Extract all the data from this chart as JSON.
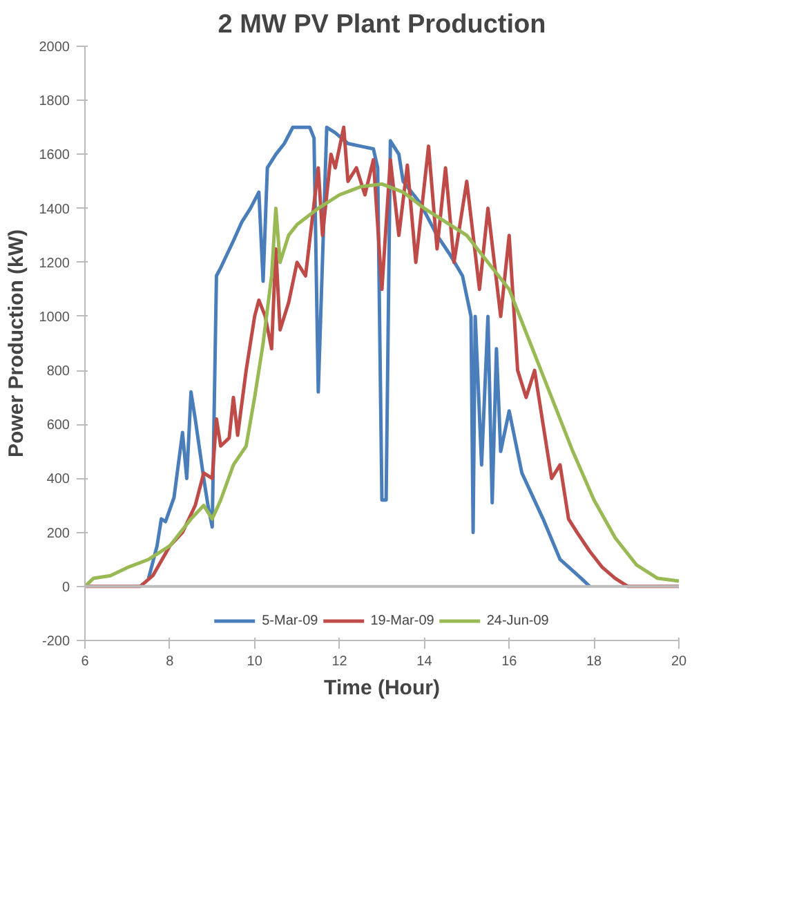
{
  "chart_data": {
    "type": "line",
    "title": "2 MW PV Plant Production",
    "xlabel": "Time (Hour)",
    "ylabel": "Power Production (kW)",
    "xlim": [
      6,
      20
    ],
    "xticks": [
      6,
      8,
      10,
      12,
      14,
      16,
      18,
      20
    ],
    "ylim": [
      -200,
      2000
    ],
    "yticks": [
      -200,
      0,
      200,
      400,
      600,
      800,
      1000,
      1200,
      1400,
      1600,
      1800,
      2000
    ],
    "ref_lines": [
      {
        "axis": "y",
        "value": 0,
        "color": "#bbbbbb"
      }
    ],
    "grid": false,
    "legend": "bottom",
    "marker": "none",
    "line_style": "solid",
    "series": [
      {
        "name": "5-Mar-09",
        "color": "#4a7ebb",
        "x": [
          7.5,
          7.7,
          7.8,
          7.9,
          8.1,
          8.3,
          8.4,
          8.5,
          8.6,
          8.8,
          8.9,
          9.0,
          9.1,
          9.2,
          9.5,
          9.7,
          9.9,
          10.1,
          10.2,
          10.3,
          10.5,
          10.7,
          10.9,
          11.3,
          11.4,
          11.5,
          11.7,
          11.9,
          12.2,
          12.5,
          12.8,
          12.9,
          13.0,
          13.1,
          13.2,
          13.4,
          13.5,
          13.9,
          14.3,
          14.6,
          14.9,
          15.1,
          15.15,
          15.2,
          15.35,
          15.5,
          15.6,
          15.7,
          15.8,
          16.0,
          16.3,
          16.8,
          17.2,
          17.7,
          17.9
        ],
        "values": [
          30,
          150,
          250,
          240,
          330,
          570,
          400,
          720,
          620,
          400,
          300,
          220,
          1150,
          1180,
          1280,
          1350,
          1400,
          1460,
          1130,
          1550,
          1600,
          1640,
          1700,
          1700,
          1660,
          720,
          1700,
          1680,
          1640,
          1630,
          1620,
          1550,
          320,
          320,
          1650,
          1600,
          1500,
          1420,
          1300,
          1230,
          1150,
          1000,
          200,
          1000,
          450,
          1000,
          310,
          880,
          500,
          650,
          420,
          250,
          100,
          30,
          0
        ]
      },
      {
        "name": "19-Mar-09",
        "color": "#be4b48",
        "x": [
          6,
          7.3,
          7.6,
          8.0,
          8.3,
          8.6,
          8.8,
          9.0,
          9.1,
          9.2,
          9.4,
          9.5,
          9.6,
          9.8,
          10.0,
          10.1,
          10.25,
          10.4,
          10.5,
          10.6,
          10.8,
          11.0,
          11.2,
          11.5,
          11.6,
          11.8,
          11.9,
          12.1,
          12.2,
          12.4,
          12.6,
          12.8,
          13.0,
          13.2,
          13.4,
          13.6,
          13.8,
          14.1,
          14.3,
          14.5,
          14.7,
          15.0,
          15.3,
          15.5,
          15.8,
          16.0,
          16.2,
          16.4,
          16.6,
          16.8,
          17.0,
          17.2,
          17.4,
          17.6,
          17.9,
          18.2,
          18.5,
          18.8,
          20
        ],
        "values": [
          0,
          0,
          40,
          150,
          200,
          300,
          420,
          400,
          620,
          520,
          550,
          700,
          560,
          800,
          1000,
          1060,
          1000,
          880,
          1250,
          950,
          1050,
          1200,
          1150,
          1550,
          1300,
          1600,
          1550,
          1700,
          1500,
          1550,
          1450,
          1580,
          1100,
          1580,
          1300,
          1560,
          1200,
          1630,
          1250,
          1550,
          1200,
          1500,
          1100,
          1400,
          1000,
          1300,
          800,
          700,
          800,
          600,
          400,
          450,
          250,
          200,
          130,
          70,
          30,
          0,
          0
        ]
      },
      {
        "name": "24-Jun-09",
        "color": "#98b954",
        "x": [
          6.0,
          6.2,
          6.6,
          7.0,
          7.5,
          8.0,
          8.5,
          8.8,
          9.0,
          9.2,
          9.5,
          9.8,
          10.0,
          10.2,
          10.4,
          10.5,
          10.6,
          10.8,
          11.0,
          11.5,
          12.0,
          12.5,
          13.0,
          13.5,
          14.0,
          14.5,
          15.0,
          15.5,
          16.0,
          16.5,
          17.0,
          17.5,
          18.0,
          18.5,
          19.0,
          19.5,
          20
        ],
        "values": [
          0,
          30,
          40,
          70,
          100,
          150,
          250,
          300,
          250,
          320,
          450,
          520,
          700,
          900,
          1150,
          1400,
          1200,
          1300,
          1340,
          1400,
          1450,
          1480,
          1490,
          1460,
          1400,
          1350,
          1300,
          1200,
          1100,
          900,
          700,
          500,
          320,
          180,
          80,
          30,
          20
        ]
      }
    ]
  }
}
